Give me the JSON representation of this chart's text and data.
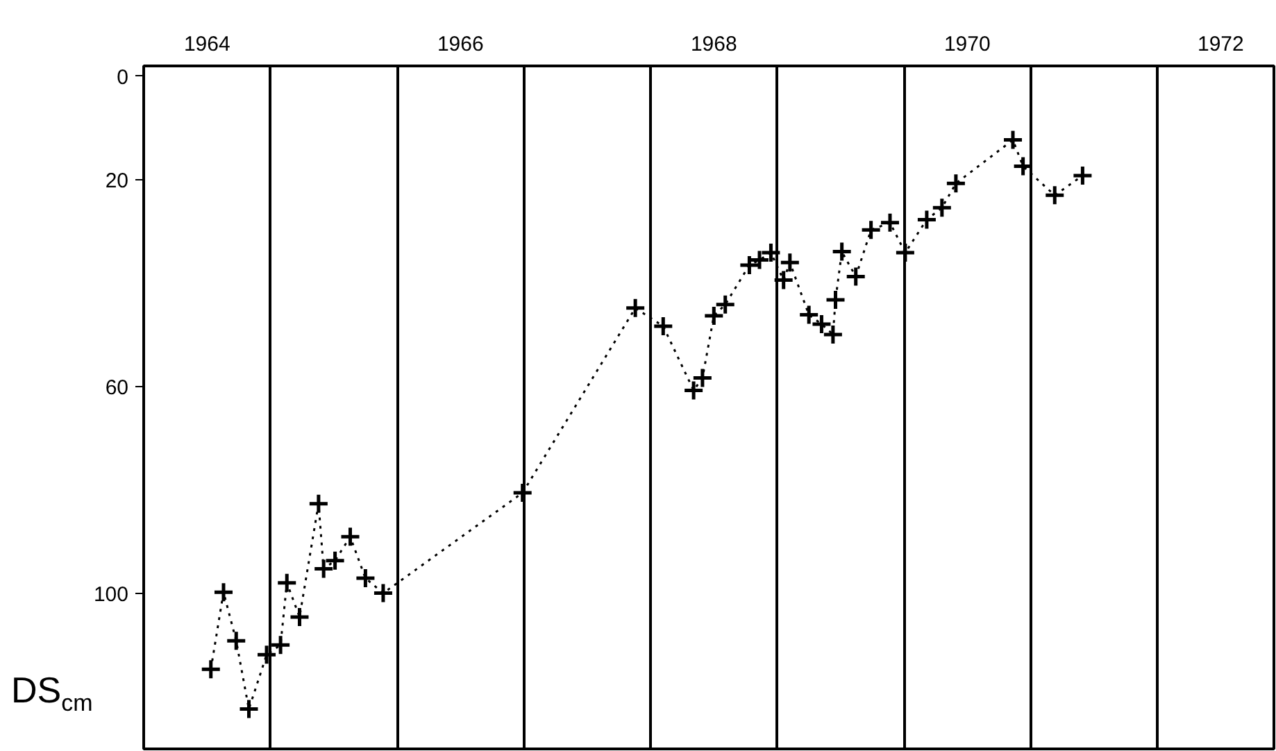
{
  "chart_data": {
    "type": "line",
    "ylabel": "DS$_{cm}$",
    "x": [
      1964.53,
      1964.63,
      1964.73,
      1964.83,
      1964.97,
      1965.08,
      1965.13,
      1965.23,
      1965.38,
      1965.42,
      1965.51,
      1965.63,
      1965.75,
      1965.89,
      1966.99,
      1967.88,
      1968.1,
      1968.34,
      1968.41,
      1968.5,
      1968.59,
      1968.78,
      1968.86,
      1968.95,
      1969.05,
      1969.1,
      1969.25,
      1969.35,
      1969.44,
      1969.46,
      1969.51,
      1969.62,
      1969.74,
      1969.89,
      1970.01,
      1970.18,
      1970.3,
      1970.41,
      1970.86,
      1970.94,
      1971.19,
      1971.41
    ],
    "series": [
      {
        "color": "#000000",
        "values": [
          114.6,
          99.7,
          109.1,
          122.3,
          111.8,
          109.9,
          97.9,
          104.5,
          82.6,
          95.2,
          93.6,
          89.0,
          97.0,
          99.9,
          80.5,
          44.8,
          48.3,
          60.7,
          58.3,
          46.3,
          44.1,
          36.5,
          35.5,
          34.1,
          39.4,
          36.0,
          46.1,
          47.9,
          49.9,
          43.2,
          33.9,
          38.7,
          29.7,
          28.3,
          34.1,
          27.7,
          25.4,
          20.7,
          12.3,
          17.4,
          23.0,
          19.2
        ]
      }
    ],
    "xlim": [
      1964,
      1972.92
    ],
    "ylim": [
      130,
      -2
    ],
    "xticks": [
      {
        "value": 1964,
        "label": null
      },
      {
        "value": 1964.5,
        "label": "1964"
      },
      {
        "value": 1965,
        "label": null
      },
      {
        "value": 1966,
        "label": null
      },
      {
        "value": 1966.5,
        "label": "1966"
      },
      {
        "value": 1967,
        "label": null
      },
      {
        "value": 1968,
        "label": null
      },
      {
        "value": 1968.5,
        "label": "1968"
      },
      {
        "value": 1969,
        "label": null
      },
      {
        "value": 1970,
        "label": null
      },
      {
        "value": 1970.5,
        "label": "1970"
      },
      {
        "value": 1971,
        "label": null
      },
      {
        "value": 1972,
        "label": null
      },
      {
        "value": 1972.5,
        "label": "1972"
      }
    ],
    "yticks": [
      0,
      20,
      60,
      100
    ],
    "grid": "x",
    "marker": "cross",
    "line_style": "dotted"
  }
}
